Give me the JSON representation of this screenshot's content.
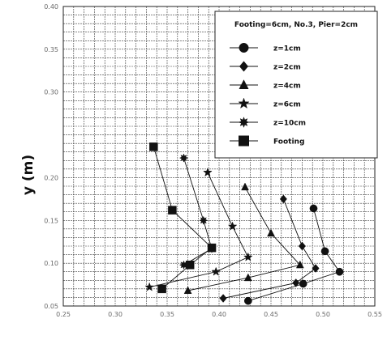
{
  "chart_data": {
    "type": "line",
    "ylabel": "y (m)",
    "xlim": [
      0.25,
      0.55
    ],
    "ylim": [
      0.05,
      0.4
    ],
    "grid": true,
    "xticks": [
      "0.25",
      "0.30",
      "0.35",
      "0.40",
      "0.45",
      "0.50",
      "0.55"
    ],
    "yticks": [
      "0.05",
      "0.10",
      "0.15",
      "0.20",
      "",
      "0.30",
      "0.35",
      "0.40"
    ],
    "legend": {
      "title": "Footing=6cm, No.3, Pier=2cm",
      "placement": "top-right"
    },
    "series": [
      {
        "name": "z=1cm",
        "marker": "circle",
        "x": [
          0.491,
          0.502,
          0.516,
          0.481,
          0.428
        ],
        "y": [
          0.164,
          0.114,
          0.09,
          0.076,
          0.056
        ]
      },
      {
        "name": "z=2cm",
        "marker": "diamond",
        "x": [
          0.462,
          0.48,
          0.493,
          0.474,
          0.404
        ],
        "y": [
          0.175,
          0.12,
          0.094,
          0.077,
          0.059
        ]
      },
      {
        "name": "z=4cm",
        "marker": "triangle",
        "x": [
          0.425,
          0.45,
          0.478,
          0.428,
          0.37
        ],
        "y": [
          0.189,
          0.135,
          0.098,
          0.083,
          0.068
        ]
      },
      {
        "name": "z=6cm",
        "marker": "star",
        "x": [
          0.389,
          0.413,
          0.428,
          0.397,
          0.333
        ],
        "y": [
          0.206,
          0.143,
          0.107,
          0.09,
          0.072
        ]
      },
      {
        "name": "z=10cm",
        "marker": "star8",
        "x": [
          0.366,
          0.385,
          0.393,
          0.366
        ],
        "y": [
          0.223,
          0.15,
          0.117,
          0.098
        ]
      },
      {
        "name": "Footing",
        "marker": "square",
        "x": [
          0.337,
          0.355,
          0.393,
          0.372,
          0.345
        ],
        "y": [
          0.236,
          0.162,
          0.118,
          0.098,
          0.07
        ]
      }
    ]
  }
}
